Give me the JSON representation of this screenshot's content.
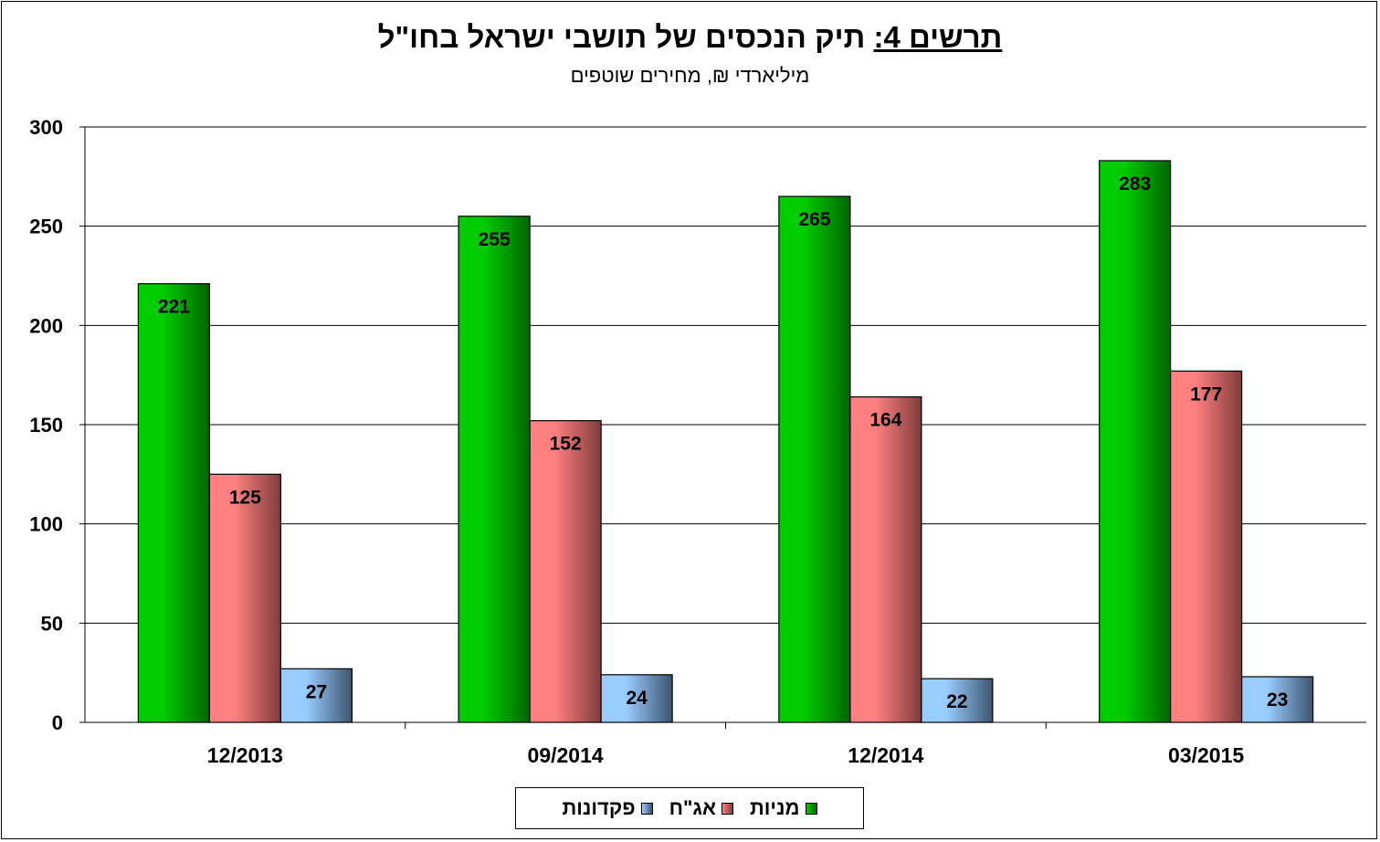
{
  "chart_data": {
    "type": "bar",
    "title_prefix": "תרשים 4:",
    "title_main": "תיק הנכסים של תושבי ישראל בחו\"ל",
    "subtitle": "מיליארדי ₪, מחירים שוטפים",
    "categories": [
      "12/2013",
      "09/2014",
      "12/2014",
      "03/2015"
    ],
    "series": [
      {
        "name": "מניות",
        "values": [
          221,
          255,
          265,
          283
        ],
        "color": "#00cc00",
        "dark": "#006600"
      },
      {
        "name": "אג\"ח",
        "values": [
          125,
          152,
          164,
          177
        ],
        "color": "#ff8080",
        "dark": "#803c3c"
      },
      {
        "name": "פקדונות",
        "values": [
          27,
          24,
          22,
          23
        ],
        "color": "#99ccff",
        "dark": "#3d5570"
      }
    ],
    "yticks": [
      0,
      50,
      100,
      150,
      200,
      250,
      300
    ],
    "ylim": [
      0,
      300
    ],
    "grid": true,
    "legend_position": "bottom"
  }
}
